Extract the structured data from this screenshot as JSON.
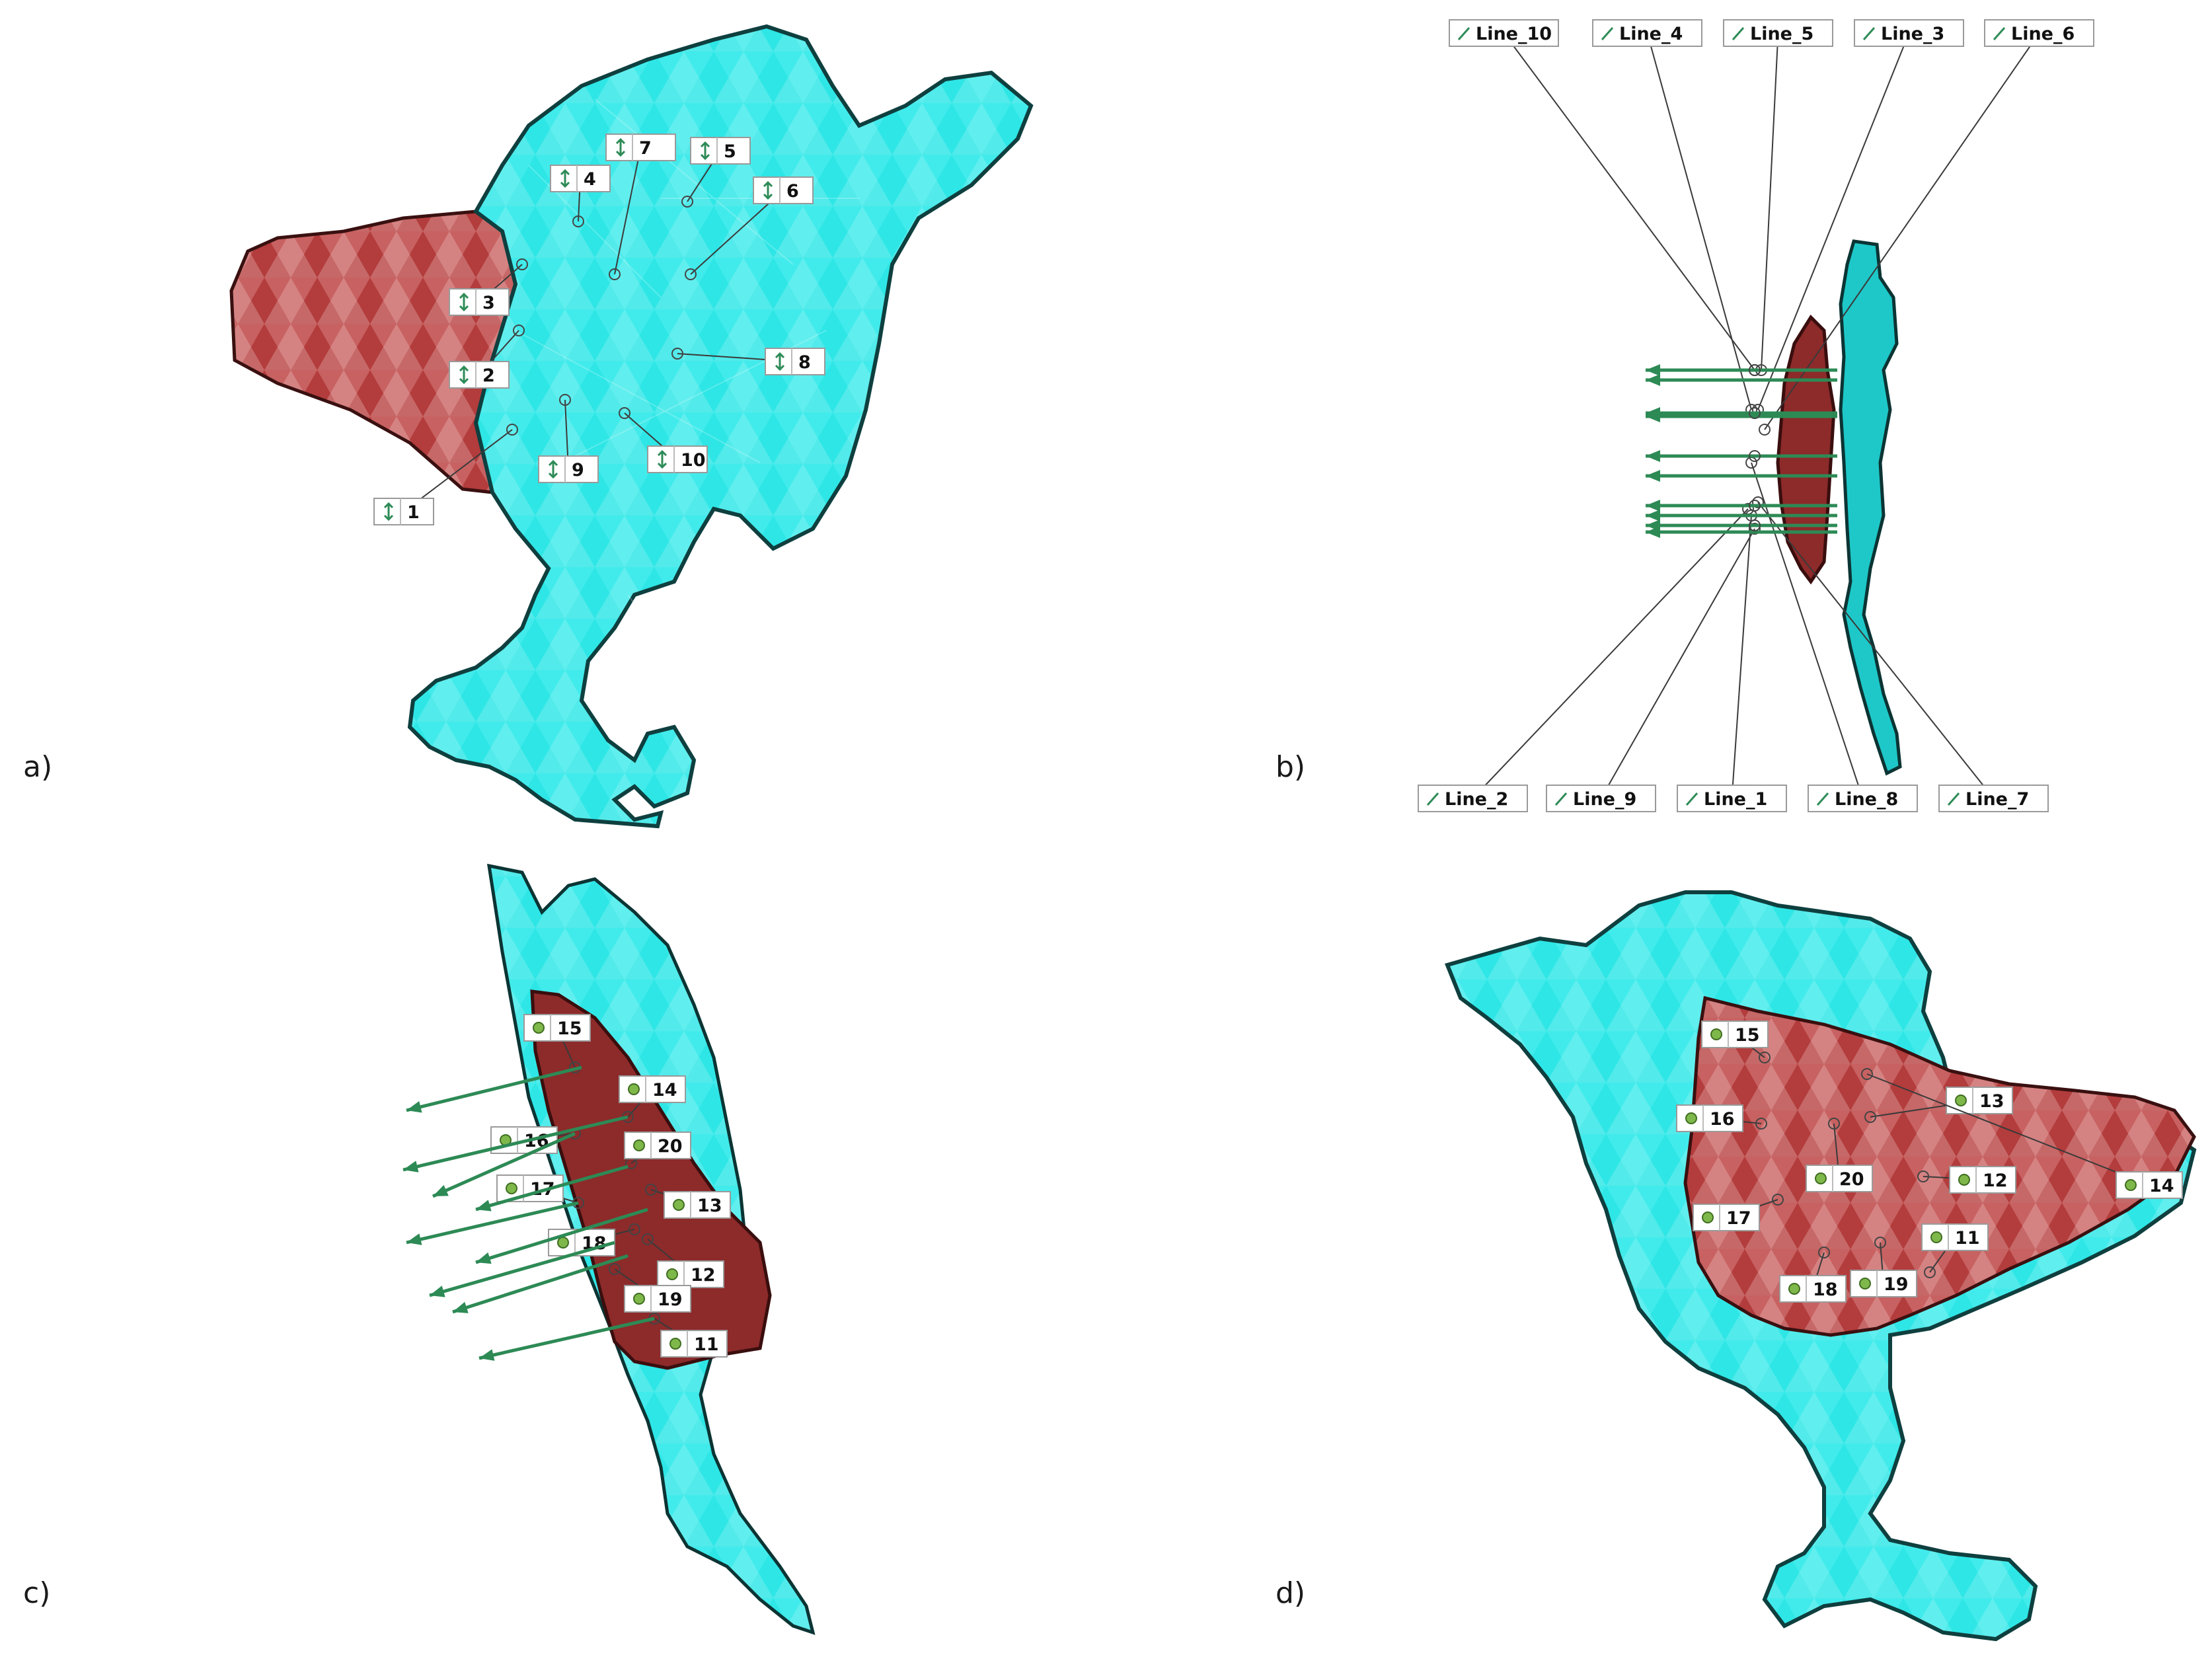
{
  "panels": [
    {
      "letter": "a)",
      "tags": [
        "1",
        "2",
        "3",
        "4",
        "5",
        "6",
        "7",
        "8",
        "9",
        "10"
      ]
    },
    {
      "letter": "b)",
      "tags": [
        "Line_10",
        "Line_4",
        "Line_5",
        "Line_3",
        "Line_6",
        "Line_2",
        "Line_9",
        "Line_1",
        "Line_8",
        "Line_7"
      ]
    },
    {
      "letter": "c)",
      "tags": [
        "15",
        "14",
        "16",
        "20",
        "17",
        "13",
        "18",
        "12",
        "19",
        "11"
      ]
    },
    {
      "letter": "d)",
      "tags": [
        "15",
        "13",
        "16",
        "20",
        "12",
        "14",
        "17",
        "11",
        "18",
        "19"
      ]
    }
  ],
  "colors": {
    "host_mesh": "#2ee6e6",
    "target_mesh": "#b04040",
    "arrow": "#2d8a55",
    "marker": "#7fb84a"
  }
}
